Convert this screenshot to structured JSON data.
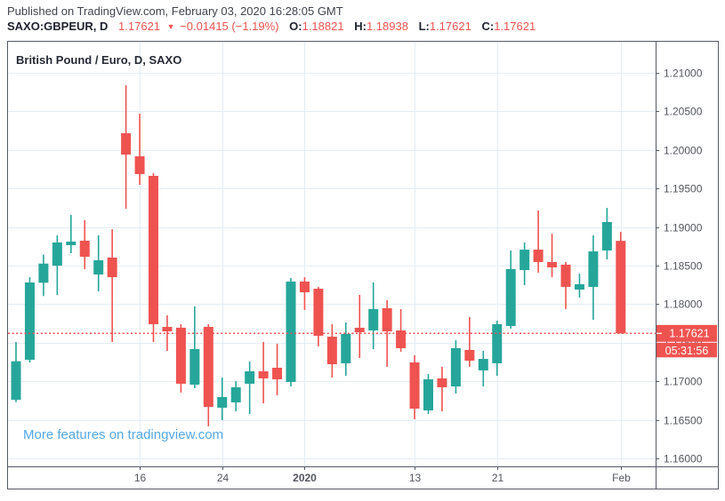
{
  "header": {
    "published": "Published on TradingView.com, February 03, 2020 16:28:05 GMT",
    "symbol": "SAXO:GBPEUR, D",
    "last_price": "1.17621",
    "direction_icon": "▼",
    "change": "−0.01415 (−1.19%)",
    "ohlc": [
      {
        "label": "O:",
        "value": "1.18821"
      },
      {
        "label": "H:",
        "value": "1.18938"
      },
      {
        "label": "L:",
        "value": "1.17621"
      },
      {
        "label": "C:",
        "value": "1.17621"
      }
    ]
  },
  "legend": {
    "title": "British Pound / Euro, D, SAXO"
  },
  "watermark": {
    "text": "More features on tradingview.com"
  },
  "colors": {
    "up": "#26a69a",
    "down": "#ef5350",
    "grid": "#e4edf4",
    "frame": "#555a64",
    "axis_text": "#53565e",
    "badge_text": "#ffffff",
    "watermark_blue": "#54a8e4",
    "header_text": "#40444d",
    "symbol_text": "#1e222d"
  },
  "chart_data": {
    "type": "candlestick",
    "title": "British Pound / Euro, D, SAXO",
    "symbol": "SAXO:GBPEUR",
    "timeframe": "D",
    "ylim": [
      1.16,
      1.21
    ],
    "grid": true,
    "last_price": "1.17621",
    "countdown": "05:31:56",
    "y_axis_labels": [
      "1.21000",
      "1.20500",
      "1.20000",
      "1.19500",
      "1.19000",
      "1.18500",
      "1.18000",
      "1.17500",
      "1.17000",
      "1.16500",
      "1.16000"
    ],
    "x_ticks": [
      {
        "i": 9,
        "label": "16",
        "bold": false
      },
      {
        "i": 15,
        "label": "24",
        "bold": false
      },
      {
        "i": 21,
        "label": "2020",
        "bold": true
      },
      {
        "i": 29,
        "label": "13",
        "bold": false
      },
      {
        "i": 35,
        "label": "21",
        "bold": false
      },
      {
        "i": 44,
        "label": "Feb",
        "bold": false
      }
    ],
    "candles_format": [
      "open",
      "high",
      "low",
      "close"
    ],
    "candles": [
      [
        1.1676,
        1.17509,
        1.16729,
        1.17259
      ],
      [
        1.17279,
        1.1835,
        1.17244,
        1.18281
      ],
      [
        1.18278,
        1.18642,
        1.18105,
        1.18526
      ],
      [
        1.185,
        1.18892,
        1.1812,
        1.188
      ],
      [
        1.18765,
        1.19157,
        1.18661,
        1.18811
      ],
      [
        1.18823,
        1.19088,
        1.18454,
        1.18615
      ],
      [
        1.18385,
        1.18892,
        1.18166,
        1.18569
      ],
      [
        1.18604,
        1.18972,
        1.17509,
        1.1835
      ],
      [
        1.20217,
        1.20839,
        1.19237,
        1.1994
      ],
      [
        1.19917,
        1.2047,
        1.19548,
        1.19687
      ],
      [
        1.19664,
        1.19698,
        1.17509,
        1.1774
      ],
      [
        1.17705,
        1.17855,
        1.17394,
        1.17647
      ],
      [
        1.17694,
        1.1774,
        1.16853,
        1.16968
      ],
      [
        1.16956,
        1.1797,
        1.1691,
        1.17417
      ],
      [
        1.17705,
        1.1774,
        1.16415,
        1.16668
      ],
      [
        1.16657,
        1.17048,
        1.16495,
        1.16795
      ],
      [
        1.16726,
        1.17002,
        1.16611,
        1.16922
      ],
      [
        1.16968,
        1.17256,
        1.16576,
        1.17129
      ],
      [
        1.17129,
        1.17509,
        1.16714,
        1.17037
      ],
      [
        1.17175,
        1.17486,
        1.16818,
        1.17025
      ],
      [
        1.16991,
        1.18339,
        1.16933,
        1.18293
      ],
      [
        1.18293,
        1.1835,
        1.17924,
        1.18154
      ],
      [
        1.182,
        1.18224,
        1.17452,
        1.1759
      ],
      [
        1.17578,
        1.1774,
        1.17048,
        1.17221
      ],
      [
        1.17233,
        1.17763,
        1.17071,
        1.17613
      ],
      [
        1.17694,
        1.1812,
        1.17302,
        1.17636
      ],
      [
        1.17659,
        1.18281,
        1.17417,
        1.17936
      ],
      [
        1.17947,
        1.18051,
        1.17187,
        1.17647
      ],
      [
        1.17659,
        1.17936,
        1.17382,
        1.17429
      ],
      [
        1.17244,
        1.17336,
        1.16507,
        1.16645
      ],
      [
        1.16622,
        1.17094,
        1.16576,
        1.17025
      ],
      [
        1.17037,
        1.17187,
        1.16611,
        1.16922
      ],
      [
        1.16933,
        1.17532,
        1.16841,
        1.17429
      ],
      [
        1.17406,
        1.17832,
        1.17187,
        1.17267
      ],
      [
        1.17141,
        1.17394,
        1.16933,
        1.1729
      ],
      [
        1.17233,
        1.17786,
        1.17071,
        1.1774
      ],
      [
        1.17717,
        1.18696,
        1.17682,
        1.18454
      ],
      [
        1.18442,
        1.188,
        1.18246,
        1.18707
      ],
      [
        1.18707,
        1.19214,
        1.18408,
        1.18546
      ],
      [
        1.18546,
        1.18915,
        1.1835,
        1.18477
      ],
      [
        1.18512,
        1.18546,
        1.17936,
        1.18224
      ],
      [
        1.18189,
        1.18396,
        1.18085,
        1.18258
      ],
      [
        1.18224,
        1.18892,
        1.17797,
        1.18684
      ],
      [
        1.18696,
        1.19249,
        1.18581,
        1.19065
      ],
      [
        1.18821,
        1.18938,
        1.17621,
        1.17621
      ]
    ]
  }
}
